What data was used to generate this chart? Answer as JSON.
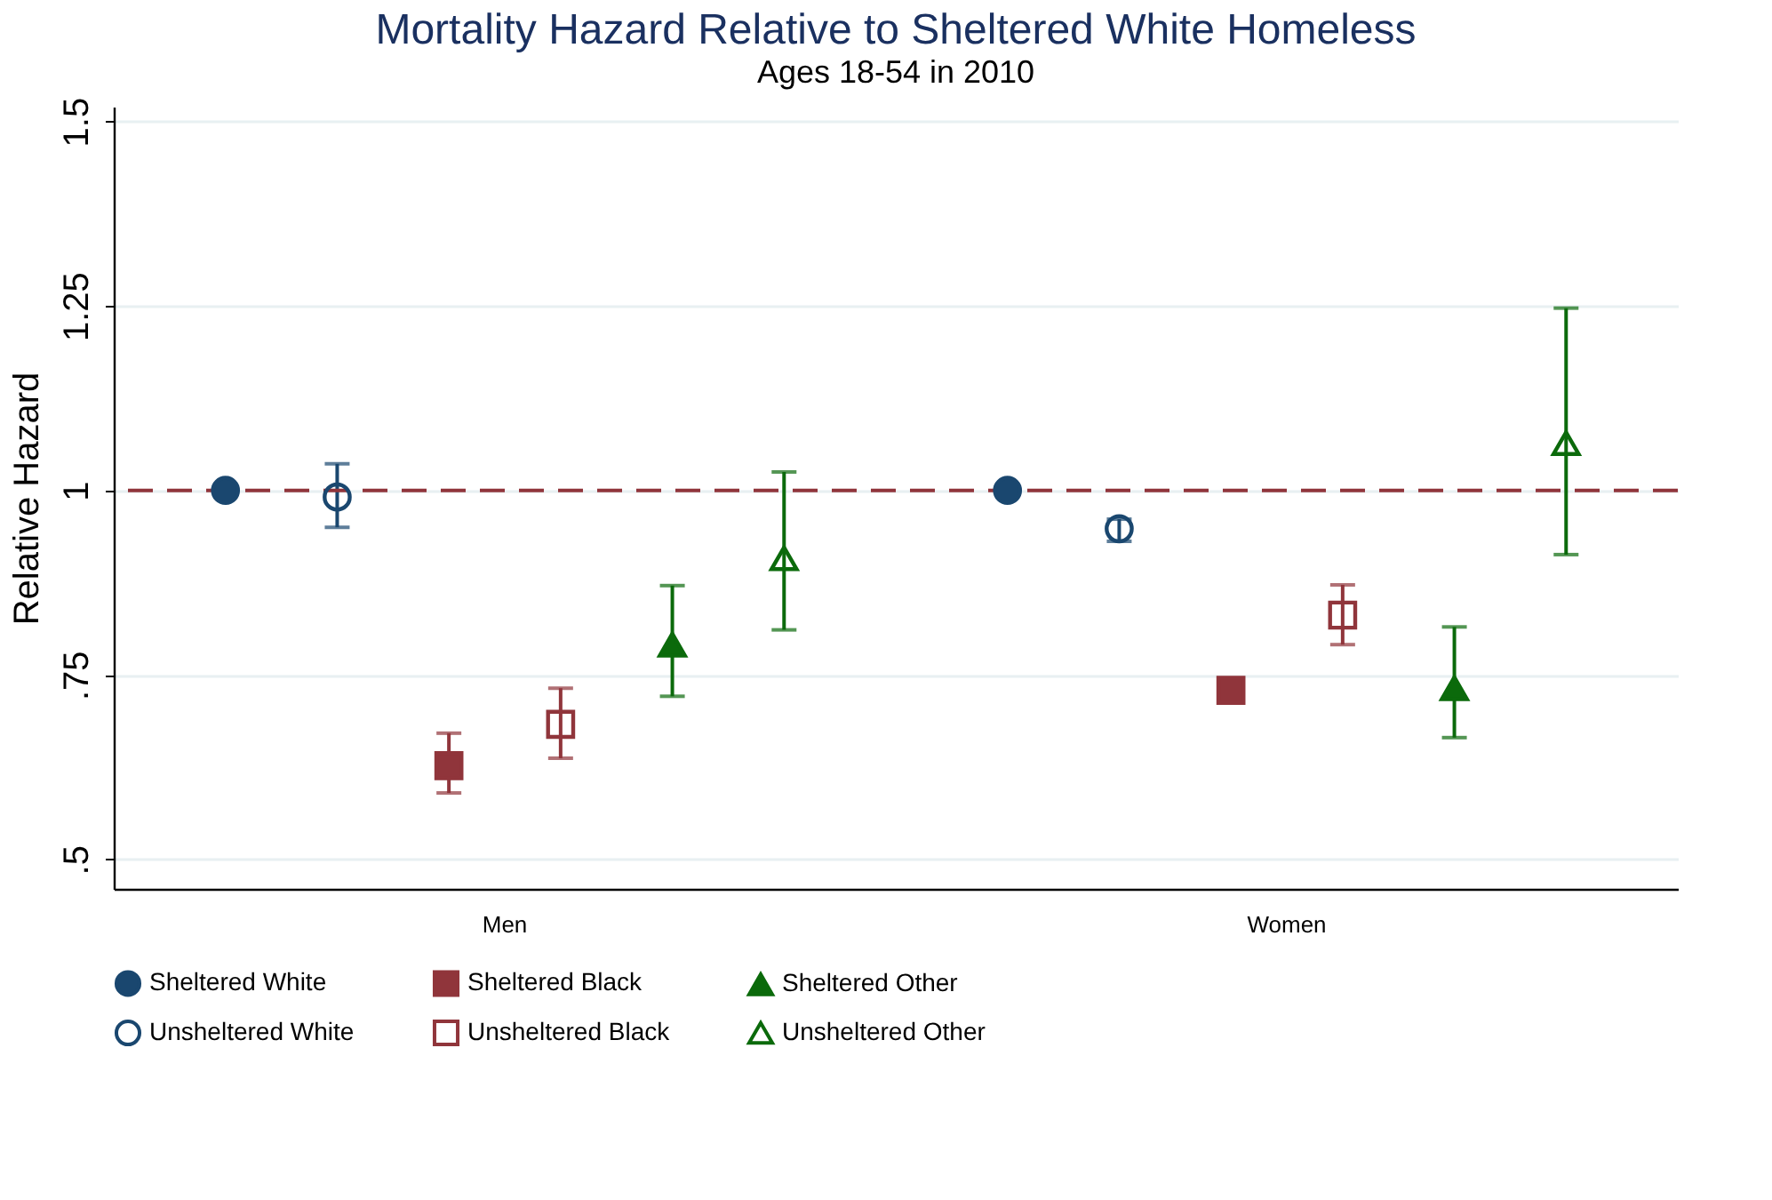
{
  "chart_data": {
    "type": "scatter",
    "title": "Mortality Hazard Relative to Sheltered White Homeless",
    "subtitle": "Ages 18-54 in 2010",
    "ylabel": "Relative Hazard",
    "categories": [
      "Men",
      "Women"
    ],
    "ylim": [
      0.46,
      1.52
    ],
    "yticks": [
      {
        "value": 0.5,
        "label": ".5"
      },
      {
        "value": 0.75,
        "label": ".75"
      },
      1,
      1.25,
      1.5
    ],
    "grid": "y",
    "legend": "bottom",
    "ref_lines": [
      {
        "axis": "y",
        "value": 1,
        "color": "#90353b",
        "line_style": "dashed"
      }
    ],
    "series": [
      {
        "name": "Sheltered White",
        "color": "#1a476f",
        "marker": "circle",
        "values": [
          1,
          1
        ],
        "errors": [
          null,
          null
        ]
      },
      {
        "name": "Unsheltered White",
        "color": "#1a476f",
        "marker": "circle",
        "values": [
          0.991,
          0.948
        ],
        "errors": [
          [
            0.95,
            1.036
          ],
          [
            0.931,
            0.961
          ]
        ]
      },
      {
        "name": "Sheltered Black",
        "color": "#90353b",
        "marker": "square",
        "values": [
          0.627,
          0.729
        ],
        "errors": [
          [
            0.59,
            0.671
          ],
          null
        ]
      },
      {
        "name": "Unsheltered Black",
        "color": "#90353b",
        "marker": "square",
        "values": [
          0.683,
          0.831
        ],
        "errors": [
          [
            0.637,
            0.732
          ],
          [
            0.791,
            0.872
          ]
        ]
      },
      {
        "name": "Sheltered Other",
        "color": "#0b6a0b",
        "marker": "triangle",
        "values": [
          0.791,
          0.732
        ],
        "errors": [
          [
            0.721,
            0.871
          ],
          [
            0.665,
            0.815
          ]
        ]
      },
      {
        "name": "Unsheltered Other",
        "color": "#0b6a0b",
        "marker": "triangle",
        "values": [
          0.908,
          1.064
        ],
        "errors": [
          [
            0.811,
            1.025
          ],
          [
            0.913,
            1.247
          ]
        ]
      }
    ]
  }
}
